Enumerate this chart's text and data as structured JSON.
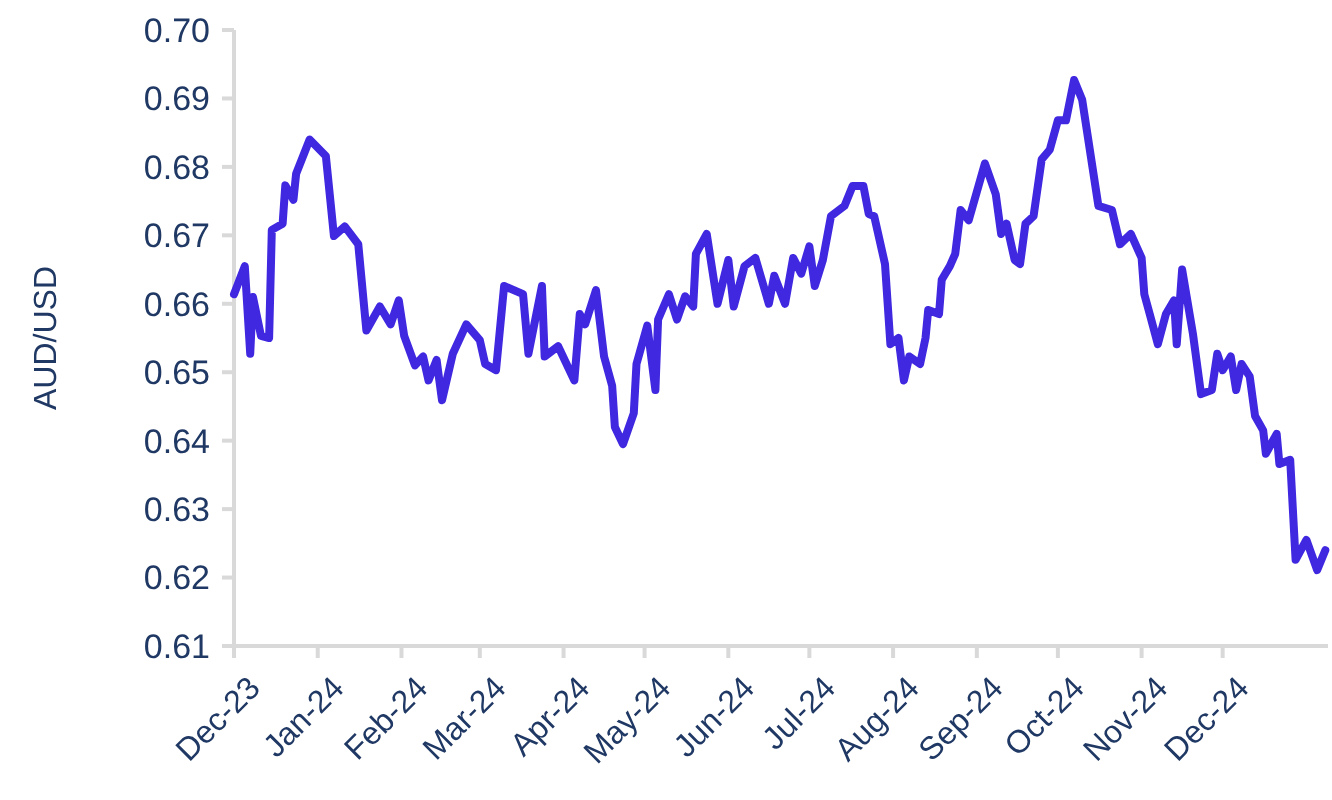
{
  "chart_data": {
    "type": "line",
    "ylabel": "AUD/USD",
    "grid": false,
    "marker": "none",
    "line_style": "solid",
    "xlim": [
      "2023-12-01",
      "2025-01-09"
    ],
    "ylim": [
      0.61,
      0.7
    ],
    "yticks": [
      {
        "value": 0.61,
        "label": "0.61"
      },
      {
        "value": 0.62,
        "label": "0.62"
      },
      {
        "value": 0.63,
        "label": "0.63"
      },
      {
        "value": 0.64,
        "label": "0.64"
      },
      {
        "value": 0.65,
        "label": "0.65"
      },
      {
        "value": 0.66,
        "label": "0.66"
      },
      {
        "value": 0.67,
        "label": "0.67"
      },
      {
        "value": 0.68,
        "label": "0.68"
      },
      {
        "value": 0.69,
        "label": "0.69"
      },
      {
        "value": 0.7,
        "label": "0.70"
      }
    ],
    "xticks": [
      {
        "value": "2023-12-01",
        "label": "Dec-23"
      },
      {
        "value": "2024-01-01",
        "label": "Jan-24"
      },
      {
        "value": "2024-02-01",
        "label": "Feb-24"
      },
      {
        "value": "2024-03-01",
        "label": "Mar-24"
      },
      {
        "value": "2024-04-01",
        "label": "Apr-24"
      },
      {
        "value": "2024-05-01",
        "label": "May-24"
      },
      {
        "value": "2024-06-01",
        "label": "Jun-24"
      },
      {
        "value": "2024-07-01",
        "label": "Jul-24"
      },
      {
        "value": "2024-08-01",
        "label": "Aug-24"
      },
      {
        "value": "2024-09-01",
        "label": "Sep-24"
      },
      {
        "value": "2024-10-01",
        "label": "Oct-24"
      },
      {
        "value": "2024-11-01",
        "label": "Nov-24"
      },
      {
        "value": "2024-12-01",
        "label": "Dec-24"
      }
    ],
    "x": [
      "2023-12-01",
      "2023-12-05",
      "2023-12-07",
      "2023-12-08",
      "2023-12-11",
      "2023-12-14",
      "2023-12-15",
      "2023-12-19",
      "2023-12-20",
      "2023-12-23",
      "2023-12-24",
      "2023-12-29",
      "2024-01-04",
      "2024-01-07",
      "2024-01-11",
      "2024-01-16",
      "2024-01-19",
      "2024-01-24",
      "2024-01-28",
      "2024-01-31",
      "2024-02-02",
      "2024-02-06",
      "2024-02-09",
      "2024-02-11",
      "2024-02-14",
      "2024-02-16",
      "2024-02-20",
      "2024-02-25",
      "2024-03-01",
      "2024-03-03",
      "2024-03-07",
      "2024-03-10",
      "2024-03-17",
      "2024-03-19",
      "2024-03-24",
      "2024-03-25",
      "2024-03-30",
      "2024-04-05",
      "2024-04-07",
      "2024-04-09",
      "2024-04-13",
      "2024-04-16",
      "2024-04-19",
      "2024-04-20",
      "2024-04-23",
      "2024-04-27",
      "2024-04-28",
      "2024-05-02",
      "2024-05-05",
      "2024-05-06",
      "2024-05-10",
      "2024-05-13",
      "2024-05-16",
      "2024-05-19",
      "2024-05-20",
      "2024-05-24",
      "2024-05-28",
      "2024-06-01",
      "2024-06-03",
      "2024-06-07",
      "2024-06-11",
      "2024-06-16",
      "2024-06-18",
      "2024-06-22",
      "2024-06-25",
      "2024-06-28",
      "2024-07-01",
      "2024-07-03",
      "2024-07-06",
      "2024-07-09",
      "2024-07-14",
      "2024-07-17",
      "2024-07-21",
      "2024-07-23",
      "2024-07-25",
      "2024-07-29",
      "2024-07-31",
      "2024-08-03",
      "2024-08-05",
      "2024-08-07",
      "2024-08-11",
      "2024-08-13",
      "2024-08-14",
      "2024-08-18",
      "2024-08-19",
      "2024-08-22",
      "2024-08-24",
      "2024-08-26",
      "2024-08-29",
      "2024-09-04",
      "2024-09-08",
      "2024-09-10",
      "2024-09-12",
      "2024-09-15",
      "2024-09-17",
      "2024-09-19",
      "2024-09-22",
      "2024-09-25",
      "2024-09-28",
      "2024-10-01",
      "2024-10-04",
      "2024-10-07",
      "2024-10-10",
      "2024-10-16",
      "2024-10-21",
      "2024-10-24",
      "2024-10-28",
      "2024-11-01",
      "2024-11-02",
      "2024-11-04",
      "2024-11-07",
      "2024-11-10",
      "2024-11-13",
      "2024-11-14",
      "2024-11-16",
      "2024-11-20",
      "2024-11-23",
      "2024-11-27",
      "2024-11-29",
      "2024-12-01",
      "2024-12-04",
      "2024-12-06",
      "2024-12-08",
      "2024-12-11",
      "2024-12-13",
      "2024-12-16",
      "2024-12-17",
      "2024-12-21",
      "2024-12-22",
      "2024-12-26",
      "2024-12-28",
      "2025-01-01",
      "2025-01-05",
      "2025-01-08"
    ],
    "series": [
      {
        "color": "#3f28e0",
        "values": [
          0.6614,
          0.6655,
          0.6527,
          0.661,
          0.6553,
          0.655,
          0.6708,
          0.6717,
          0.6773,
          0.6752,
          0.679,
          0.684,
          0.6816,
          0.6699,
          0.6713,
          0.6687,
          0.6561,
          0.6596,
          0.657,
          0.6605,
          0.6553,
          0.651,
          0.6523,
          0.6488,
          0.6518,
          0.6459,
          0.6527,
          0.657,
          0.6547,
          0.6512,
          0.6503,
          0.6626,
          0.6614,
          0.6527,
          0.6626,
          0.6523,
          0.6538,
          0.6488,
          0.6585,
          0.657,
          0.662,
          0.6523,
          0.648,
          0.642,
          0.6395,
          0.644,
          0.6512,
          0.6568,
          0.6474,
          0.6577,
          0.6614,
          0.6577,
          0.6611,
          0.6596,
          0.6673,
          0.6702,
          0.66,
          0.6664,
          0.6596,
          0.6655,
          0.6667,
          0.66,
          0.6641,
          0.66,
          0.6667,
          0.6644,
          0.6684,
          0.6626,
          0.6664,
          0.6728,
          0.6743,
          0.6772,
          0.6772,
          0.6731,
          0.6728,
          0.6658,
          0.6541,
          0.655,
          0.6488,
          0.6523,
          0.6512,
          0.655,
          0.6591,
          0.6585,
          0.6635,
          0.6655,
          0.6673,
          0.6737,
          0.6722,
          0.6805,
          0.676,
          0.6702,
          0.6717,
          0.6664,
          0.6658,
          0.6717,
          0.6728,
          0.6811,
          0.6825,
          0.6868,
          0.6868,
          0.6927,
          0.6898,
          0.6743,
          0.6737,
          0.6687,
          0.6702,
          0.6667,
          0.6614,
          0.6585,
          0.6541,
          0.6585,
          0.6605,
          0.6541,
          0.665,
          0.6556,
          0.6468,
          0.6474,
          0.6527,
          0.6503,
          0.6523,
          0.6474,
          0.6512,
          0.6494,
          0.6436,
          0.6415,
          0.6381,
          0.641,
          0.6366,
          0.6372,
          0.6226,
          0.6255,
          0.6211,
          0.624
        ]
      }
    ]
  }
}
